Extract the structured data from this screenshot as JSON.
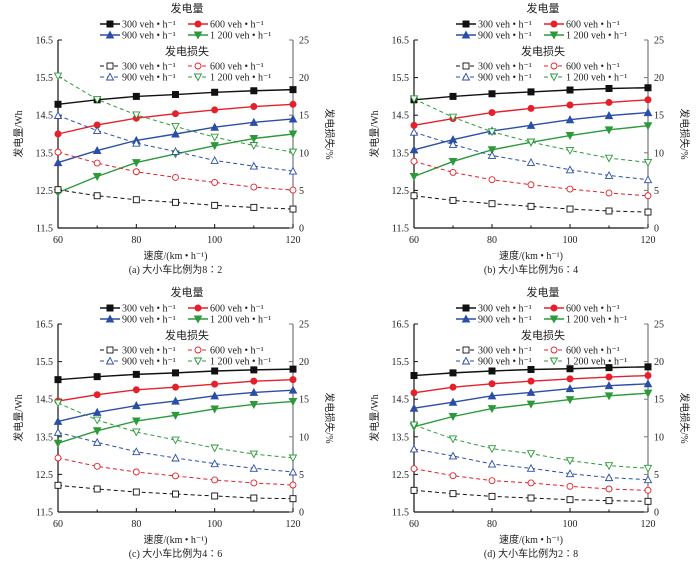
{
  "legend_titles": {
    "power": "发电量",
    "loss": "发电损失"
  },
  "colors": {
    "300": "#111111",
    "600": "#e5202a",
    "900": "#2b4ea6",
    "1200": "#2c9a3a"
  },
  "chart_data": [
    {
      "type": "line",
      "caption": "(a)   大小车比例为8∶2",
      "xlabel": "速度/(km • h⁻¹)",
      "ylabel": "发电量/Wh",
      "y2label": "发电损失/%",
      "xlim": [
        60,
        120
      ],
      "ylim": [
        11.5,
        16.5
      ],
      "y2lim": [
        0,
        25
      ],
      "xticks": [
        "60",
        "80",
        "100",
        "120"
      ],
      "yticks": [
        "11.5",
        "12.5",
        "13.5",
        "14.5",
        "15.5",
        "16.5"
      ],
      "y2ticks": [
        "0",
        "5",
        "10",
        "15",
        "20",
        "25"
      ],
      "x": [
        60,
        70,
        80,
        90,
        100,
        110,
        120
      ],
      "series": [
        {
          "name": "300 veh • h⁻¹",
          "axis": "power",
          "flow": "300",
          "values": [
            14.79,
            14.91,
            15.0,
            15.05,
            15.11,
            15.15,
            15.18
          ]
        },
        {
          "name": "600 veh • h⁻¹",
          "axis": "power",
          "flow": "600",
          "values": [
            14.0,
            14.24,
            14.42,
            14.54,
            14.64,
            14.73,
            14.79
          ]
        },
        {
          "name": "900 veh • h⁻¹",
          "axis": "power",
          "flow": "900",
          "values": [
            13.24,
            13.56,
            13.83,
            14.0,
            14.18,
            14.31,
            14.4
          ]
        },
        {
          "name": "1 200 veh • h⁻¹",
          "axis": "power",
          "flow": "1200",
          "values": [
            12.44,
            12.87,
            13.24,
            13.47,
            13.69,
            13.88,
            14.0
          ]
        },
        {
          "name": "300 veh • h⁻¹",
          "axis": "loss",
          "flow": "300",
          "values": [
            5.09,
            4.29,
            3.76,
            3.41,
            3.01,
            2.74,
            2.52
          ]
        },
        {
          "name": "600 veh • h⁻¹",
          "axis": "loss",
          "flow": "600",
          "values": [
            10.09,
            8.63,
            7.48,
            6.73,
            6.06,
            5.44,
            5.04
          ]
        },
        {
          "name": "900 veh • h⁻¹",
          "axis": "loss",
          "flow": "900",
          "values": [
            14.96,
            12.96,
            11.28,
            10.18,
            8.98,
            8.23,
            7.57
          ]
        },
        {
          "name": "1 200 veh • h⁻¹",
          "axis": "loss",
          "flow": "1200",
          "values": [
            20.2,
            17.1,
            15.04,
            13.5,
            12.08,
            10.97,
            10.09
          ]
        }
      ]
    },
    {
      "type": "line",
      "caption": "(b)   大小车比例为6∶4",
      "xlabel": "速度/(km • h⁻¹)",
      "ylabel": "发电量/Wh",
      "y2label": "发电损失/%",
      "xlim": [
        60,
        120
      ],
      "ylim": [
        11.5,
        16.5
      ],
      "y2lim": [
        0,
        25
      ],
      "xticks": [
        "60",
        "80",
        "100",
        "120"
      ],
      "yticks": [
        "11.5",
        "12.5",
        "13.5",
        "14.5",
        "15.5",
        "16.5"
      ],
      "y2ticks": [
        "0",
        "5",
        "10",
        "15",
        "20",
        "25"
      ],
      "x": [
        60,
        70,
        80,
        90,
        100,
        110,
        120
      ],
      "series": [
        {
          "name": "300 veh • h⁻¹",
          "axis": "power",
          "flow": "300",
          "values": [
            14.91,
            15.0,
            15.07,
            15.12,
            15.17,
            15.21,
            15.23
          ]
        },
        {
          "name": "600 veh • h⁻¹",
          "axis": "power",
          "flow": "600",
          "values": [
            14.23,
            14.41,
            14.57,
            14.68,
            14.77,
            14.84,
            14.91
          ]
        },
        {
          "name": "900 veh • h⁻¹",
          "axis": "power",
          "flow": "900",
          "values": [
            13.58,
            13.85,
            14.08,
            14.23,
            14.38,
            14.49,
            14.57
          ]
        },
        {
          "name": "1 200 veh • h⁻¹",
          "axis": "power",
          "flow": "1200",
          "values": [
            12.87,
            13.27,
            13.58,
            13.78,
            13.96,
            14.11,
            14.22
          ]
        },
        {
          "name": "300 veh • h⁻¹",
          "axis": "loss",
          "flow": "300",
          "values": [
            4.29,
            3.67,
            3.23,
            2.88,
            2.52,
            2.26,
            2.12
          ]
        },
        {
          "name": "600 veh • h⁻¹",
          "axis": "loss",
          "flow": "600",
          "values": [
            8.87,
            7.39,
            6.42,
            5.75,
            5.18,
            4.65,
            4.29
          ]
        },
        {
          "name": "900 veh • h⁻¹",
          "axis": "loss",
          "flow": "900",
          "values": [
            12.74,
            11.11,
            9.65,
            8.72,
            7.74,
            6.99,
            6.42
          ]
        },
        {
          "name": "1 200 veh • h⁻¹",
          "axis": "loss",
          "flow": "1200",
          "values": [
            17.17,
            14.73,
            12.79,
            11.42,
            10.31,
            9.29,
            8.72
          ]
        }
      ]
    },
    {
      "type": "line",
      "caption": "(c)   大小车比例为4∶6",
      "xlabel": "速度/(km • h⁻¹)",
      "ylabel": "发电量/Wh",
      "y2label": "发电损失/%",
      "xlim": [
        60,
        120
      ],
      "ylim": [
        11.5,
        16.5
      ],
      "y2lim": [
        0,
        25
      ],
      "xticks": [
        "60",
        "80",
        "100",
        "120"
      ],
      "yticks": [
        "11.5",
        "12.5",
        "13.5",
        "14.5",
        "15.5",
        "16.5"
      ],
      "y2ticks": [
        "0",
        "5",
        "10",
        "15",
        "20",
        "25"
      ],
      "x": [
        60,
        70,
        80,
        90,
        100,
        110,
        120
      ],
      "series": [
        {
          "name": "300 veh • h⁻¹",
          "axis": "power",
          "flow": "300",
          "values": [
            15.02,
            15.1,
            15.16,
            15.2,
            15.25,
            15.28,
            15.3
          ]
        },
        {
          "name": "600 veh • h⁻¹",
          "axis": "power",
          "flow": "600",
          "values": [
            14.45,
            14.62,
            14.75,
            14.82,
            14.9,
            14.98,
            15.02
          ]
        },
        {
          "name": "900 veh • h⁻¹",
          "axis": "power",
          "flow": "900",
          "values": [
            13.91,
            14.15,
            14.33,
            14.45,
            14.59,
            14.68,
            14.74
          ]
        },
        {
          "name": "1 200 veh • h⁻¹",
          "axis": "power",
          "flow": "1200",
          "values": [
            13.33,
            13.66,
            13.92,
            14.07,
            14.24,
            14.36,
            14.44
          ]
        },
        {
          "name": "300 veh • h⁻¹",
          "axis": "loss",
          "flow": "300",
          "values": [
            3.55,
            3.06,
            2.66,
            2.39,
            2.13,
            1.86,
            1.77
          ]
        },
        {
          "name": "600 veh • h⁻¹",
          "axis": "loss",
          "flow": "600",
          "values": [
            7.18,
            6.07,
            5.32,
            4.79,
            4.26,
            3.86,
            3.59
          ]
        },
        {
          "name": "900 veh • h⁻¹",
          "axis": "loss",
          "flow": "900",
          "values": [
            10.59,
            9.26,
            8.02,
            7.18,
            6.43,
            5.81,
            5.32
          ]
        },
        {
          "name": "1 200 veh • h⁻¹",
          "axis": "loss",
          "flow": "1200",
          "values": [
            14.49,
            12.23,
            10.64,
            9.57,
            8.51,
            7.71,
            7.18
          ]
        }
      ]
    },
    {
      "type": "line",
      "caption": "(d)   大小车比例为2∶8",
      "xlabel": "速度/(km • h⁻¹)",
      "ylabel": "发电量/Wh",
      "y2label": "发电损失/%",
      "xlim": [
        60,
        120
      ],
      "ylim": [
        11.5,
        16.5
      ],
      "y2lim": [
        0,
        25
      ],
      "xticks": [
        "60",
        "80",
        "100",
        "120"
      ],
      "yticks": [
        "11.5",
        "12.5",
        "13.5",
        "14.5",
        "15.5",
        "16.5"
      ],
      "y2ticks": [
        "0",
        "5",
        "10",
        "15",
        "20",
        "25"
      ],
      "x": [
        60,
        70,
        80,
        90,
        100,
        110,
        120
      ],
      "series": [
        {
          "name": "300 veh • h⁻¹",
          "axis": "power",
          "flow": "300",
          "values": [
            15.13,
            15.2,
            15.25,
            15.29,
            15.31,
            15.34,
            15.36
          ]
        },
        {
          "name": "600 veh • h⁻¹",
          "axis": "power",
          "flow": "600",
          "values": [
            14.67,
            14.82,
            14.91,
            14.98,
            15.04,
            15.09,
            15.13
          ]
        },
        {
          "name": "900 veh • h⁻¹",
          "axis": "power",
          "flow": "900",
          "values": [
            14.26,
            14.42,
            14.59,
            14.68,
            14.78,
            14.86,
            14.91
          ]
        },
        {
          "name": "1 200 veh • h⁻¹",
          "axis": "power",
          "flow": "1200",
          "values": [
            13.77,
            14.04,
            14.25,
            14.37,
            14.49,
            14.59,
            14.66
          ]
        },
        {
          "name": "300 veh • h⁻¹",
          "axis": "loss",
          "flow": "300",
          "values": [
            2.88,
            2.44,
            2.08,
            1.86,
            1.64,
            1.51,
            1.42
          ]
        },
        {
          "name": "600 veh • h⁻¹",
          "axis": "loss",
          "flow": "600",
          "values": [
            5.76,
            4.83,
            4.17,
            3.86,
            3.41,
            3.06,
            2.88
          ]
        },
        {
          "name": "900 veh • h⁻¹",
          "axis": "loss",
          "flow": "900",
          "values": [
            8.38,
            7.45,
            6.38,
            5.81,
            5.1,
            4.57,
            4.3
          ]
        },
        {
          "name": "1 200 veh • h⁻¹",
          "axis": "loss",
          "flow": "1200",
          "values": [
            11.57,
            9.71,
            8.42,
            7.76,
            6.83,
            6.16,
            5.81
          ]
        }
      ]
    }
  ]
}
